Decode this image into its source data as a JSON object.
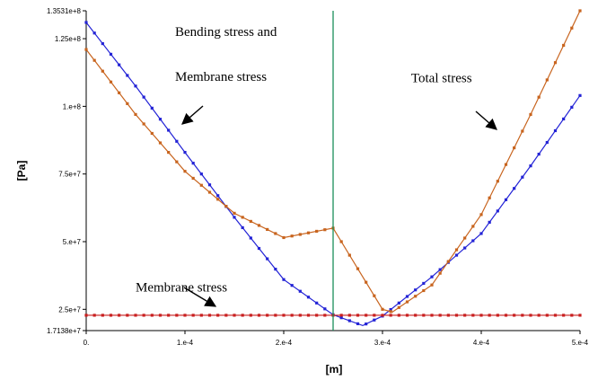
{
  "chart_data": {
    "type": "line",
    "title": "",
    "xlabel": "[m]",
    "ylabel": "[Pa]",
    "xlim": [
      0,
      0.0005
    ],
    "ylim": [
      17138000,
      135310000
    ],
    "grid": false,
    "legend": "none",
    "x_tick_labels": [
      {
        "value": 0,
        "label": "0."
      },
      {
        "value": 0.0001,
        "label": "1.e-4"
      },
      {
        "value": 0.0002,
        "label": "2.e-4"
      },
      {
        "value": 0.0003,
        "label": "3.e-4"
      },
      {
        "value": 0.0004,
        "label": "4.e-4"
      },
      {
        "value": 0.0005,
        "label": "5.e-4"
      }
    ],
    "y_tick_labels": [
      {
        "value": 17138000,
        "label": "1.7138e+7"
      },
      {
        "value": 25000000,
        "label": "2.5e+7"
      },
      {
        "value": 50000000,
        "label": "5.e+7"
      },
      {
        "value": 75000000,
        "label": "7.5e+7"
      },
      {
        "value": 100000000,
        "label": "1.e+8"
      },
      {
        "value": 125000000,
        "label": "1.25e+8"
      },
      {
        "value": 135310000,
        "label": "1.3531e+8"
      }
    ],
    "vertical_marker_x": 0.00025,
    "series": [
      {
        "color": "#2323d6",
        "x": [
          0,
          5e-05,
          0.0001,
          0.00015,
          0.0002,
          0.00025,
          0.00028,
          0.0003,
          0.00035,
          0.0004,
          0.00045,
          0.0005
        ],
        "y": [
          131000000,
          107500000,
          83000000,
          59000000,
          36000000,
          23000000,
          19000000,
          22500000,
          37000000,
          53000000,
          78000000,
          104000000
        ]
      },
      {
        "color": "#c8641e",
        "x": [
          0,
          5e-05,
          0.0001,
          0.00015,
          0.0002,
          0.00025,
          0.00028,
          0.0003,
          0.00031,
          0.00035,
          0.0004,
          0.00045,
          0.0005
        ],
        "y": [
          121000000,
          97000000,
          76000000,
          60500000,
          51500000,
          55000000,
          37000000,
          25000000,
          24000000,
          34000000,
          60000000,
          97000000,
          135310000
        ]
      },
      {
        "color": "#c81e1e",
        "x": [
          0,
          0.0005
        ],
        "y": [
          22800000,
          22800000
        ]
      }
    ],
    "annotations": [
      {
        "text": "Bending  stress  and",
        "x": 9e-05,
        "y": 126000000
      },
      {
        "text": "Membrane stress",
        "x": 9e-05,
        "y": 109500000
      },
      {
        "text": "Total stress",
        "x": 0.000329,
        "y": 109000000
      },
      {
        "text": "Membrane stress",
        "x": 5e-05,
        "y": 31500000
      }
    ]
  }
}
